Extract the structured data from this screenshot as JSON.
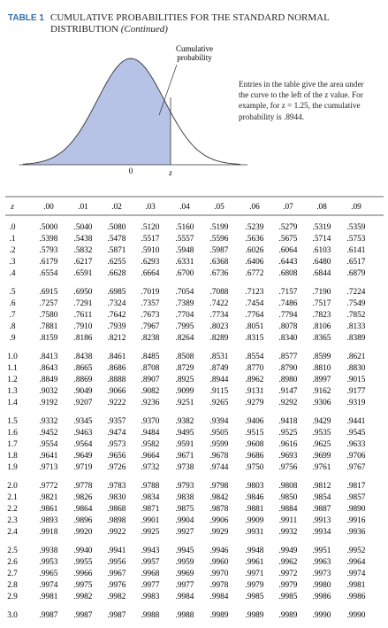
{
  "header": {
    "label": "TABLE 1",
    "title": "CUMULATIVE PROBABILITIES FOR THE STANDARD NORMAL DISTRIBUTION",
    "subtitle": "(Continued)"
  },
  "figure": {
    "callout": "Cumulative probability",
    "mean_label": "0",
    "z_label": "z",
    "note": "Entries in the table give the area under the curve to the left of the z value. For example, for z = 1.25, the cumulative probability is .8944."
  },
  "table": {
    "columns": [
      "z",
      ".00",
      ".01",
      ".02",
      ".03",
      ".04",
      ".05",
      ".06",
      ".07",
      ".08",
      ".09"
    ],
    "rows": [
      [
        ".0",
        ".5000",
        ".5040",
        ".5080",
        ".5120",
        ".5160",
        ".5199",
        ".5239",
        ".5279",
        ".5319",
        ".5359"
      ],
      [
        ".1",
        ".5398",
        ".5438",
        ".5478",
        ".5517",
        ".5557",
        ".5596",
        ".5636",
        ".5675",
        ".5714",
        ".5753"
      ],
      [
        ".2",
        ".5793",
        ".5832",
        ".5871",
        ".5910",
        ".5948",
        ".5987",
        ".6026",
        ".6064",
        ".6103",
        ".6141"
      ],
      [
        ".3",
        ".6179",
        ".6217",
        ".6255",
        ".6293",
        ".6331",
        ".6368",
        ".6406",
        ".6443",
        ".6480",
        ".6517"
      ],
      [
        ".4",
        ".6554",
        ".6591",
        ".6628",
        ".6664",
        ".6700",
        ".6736",
        ".6772",
        ".6808",
        ".6844",
        ".6879"
      ],
      [
        ".5",
        ".6915",
        ".6950",
        ".6985",
        ".7019",
        ".7054",
        ".7088",
        ".7123",
        ".7157",
        ".7190",
        ".7224"
      ],
      [
        ".6",
        ".7257",
        ".7291",
        ".7324",
        ".7357",
        ".7389",
        ".7422",
        ".7454",
        ".7486",
        ".7517",
        ".7549"
      ],
      [
        ".7",
        ".7580",
        ".7611",
        ".7642",
        ".7673",
        ".7704",
        ".7734",
        ".7764",
        ".7794",
        ".7823",
        ".7852"
      ],
      [
        ".8",
        ".7881",
        ".7910",
        ".7939",
        ".7967",
        ".7995",
        ".8023",
        ".8051",
        ".8078",
        ".8106",
        ".8133"
      ],
      [
        ".9",
        ".8159",
        ".8186",
        ".8212",
        ".8238",
        ".8264",
        ".8289",
        ".8315",
        ".8340",
        ".8365",
        ".8389"
      ],
      [
        "1.0",
        ".8413",
        ".8438",
        ".8461",
        ".8485",
        ".8508",
        ".8531",
        ".8554",
        ".8577",
        ".8599",
        ".8621"
      ],
      [
        "1.1",
        ".8643",
        ".8665",
        ".8686",
        ".8708",
        ".8729",
        ".8749",
        ".8770",
        ".8790",
        ".8810",
        ".8830"
      ],
      [
        "1.2",
        ".8849",
        ".8869",
        ".8888",
        ".8907",
        ".8925",
        ".8944",
        ".8962",
        ".8980",
        ".8997",
        ".9015"
      ],
      [
        "1.3",
        ".9032",
        ".9049",
        ".9066",
        ".9082",
        ".9099",
        ".9115",
        ".9131",
        ".9147",
        ".9162",
        ".9177"
      ],
      [
        "1.4",
        ".9192",
        ".9207",
        ".9222",
        ".9236",
        ".9251",
        ".9265",
        ".9279",
        ".9292",
        ".9306",
        ".9319"
      ],
      [
        "1.5",
        ".9332",
        ".9345",
        ".9357",
        ".9370",
        ".9382",
        ".9394",
        ".9406",
        ".9418",
        ".9429",
        ".9441"
      ],
      [
        "1.6",
        ".9452",
        ".9463",
        ".9474",
        ".9484",
        ".9495",
        ".9505",
        ".9515",
        ".9525",
        ".9535",
        ".9545"
      ],
      [
        "1.7",
        ".9554",
        ".9564",
        ".9573",
        ".9582",
        ".9591",
        ".9599",
        ".9608",
        ".9616",
        ".9625",
        ".9633"
      ],
      [
        "1.8",
        ".9641",
        ".9649",
        ".9656",
        ".9664",
        ".9671",
        ".9678",
        ".9686",
        ".9693",
        ".9699",
        ".9706"
      ],
      [
        "1.9",
        ".9713",
        ".9719",
        ".9726",
        ".9732",
        ".9738",
        ".9744",
        ".9750",
        ".9756",
        ".9761",
        ".9767"
      ],
      [
        "2.0",
        ".9772",
        ".9778",
        ".9783",
        ".9788",
        ".9793",
        ".9798",
        ".9803",
        ".9808",
        ".9812",
        ".9817"
      ],
      [
        "2.1",
        ".9821",
        ".9826",
        ".9830",
        ".9834",
        ".9838",
        ".9842",
        ".9846",
        ".9850",
        ".9854",
        ".9857"
      ],
      [
        "2.2",
        ".9861",
        ".9864",
        ".9868",
        ".9871",
        ".9875",
        ".9878",
        ".9881",
        ".9884",
        ".9887",
        ".9890"
      ],
      [
        "2.3",
        ".9893",
        ".9896",
        ".9898",
        ".9901",
        ".9904",
        ".9906",
        ".9909",
        ".9911",
        ".9913",
        ".9916"
      ],
      [
        "2.4",
        ".9918",
        ".9920",
        ".9922",
        ".9925",
        ".9927",
        ".9929",
        ".9931",
        ".9932",
        ".9934",
        ".9936"
      ],
      [
        "2.5",
        ".9938",
        ".9940",
        ".9941",
        ".9943",
        ".9945",
        ".9946",
        ".9948",
        ".9949",
        ".9951",
        ".9952"
      ],
      [
        "2.6",
        ".9953",
        ".9955",
        ".9956",
        ".9957",
        ".9959",
        ".9960",
        ".9961",
        ".9962",
        ".9963",
        ".9964"
      ],
      [
        "2.7",
        ".9965",
        ".9966",
        ".9967",
        ".9968",
        ".9969",
        ".9970",
        ".9971",
        ".9972",
        ".9973",
        ".9974"
      ],
      [
        "2.8",
        ".9974",
        ".9975",
        ".9976",
        ".9977",
        ".9977",
        ".9978",
        ".9979",
        ".9979",
        ".9980",
        ".9981"
      ],
      [
        "2.9",
        ".9981",
        ".9982",
        ".9982",
        ".9983",
        ".9984",
        ".9984",
        ".9985",
        ".9985",
        ".9986",
        ".9986"
      ],
      [
        "3.0",
        ".9987",
        ".9987",
        ".9987",
        ".9988",
        ".9988",
        ".9989",
        ".9989",
        ".9989",
        ".9990",
        ".9990"
      ]
    ]
  }
}
